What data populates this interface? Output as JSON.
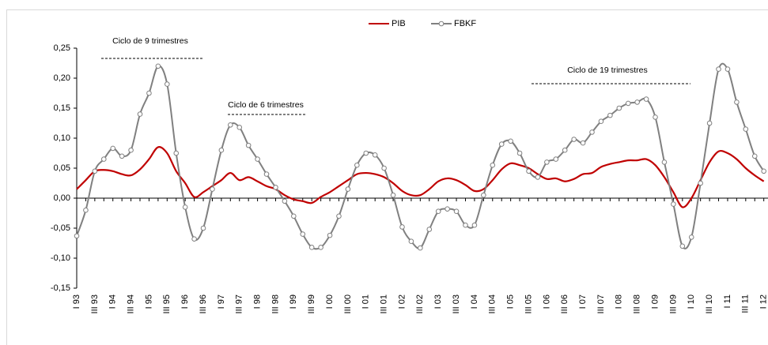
{
  "chart_data": {
    "type": "line",
    "categories": [
      "I 93",
      null,
      "III 93",
      null,
      "I 94",
      null,
      "III 94",
      null,
      "I 95",
      null,
      "III 95",
      null,
      "I 96",
      null,
      "III 96",
      null,
      "I 97",
      null,
      "III 97",
      null,
      "I 98",
      null,
      "III 98",
      null,
      "I 99",
      null,
      "III 99",
      null,
      "I 00",
      null,
      "III 00",
      null,
      "I 01",
      null,
      "III 01",
      null,
      "I 02",
      null,
      "III 02",
      null,
      "I 03",
      null,
      "III 03",
      null,
      "I 04",
      null,
      "III 04",
      null,
      "I 05",
      null,
      "III 05",
      null,
      "I 06",
      null,
      "III 06",
      null,
      "I 07",
      null,
      "III 07",
      null,
      "I 08",
      null,
      "III 08",
      null,
      "I 09",
      null,
      "III 09",
      null,
      "I 10",
      null,
      "III 10",
      null,
      "I 11",
      null,
      "III 11",
      null,
      "I 12"
    ],
    "series": [
      {
        "name": "PIB",
        "color": "#c00000",
        "values": [
          0.015,
          0.03,
          0.045,
          0.047,
          0.045,
          0.04,
          0.038,
          0.048,
          0.065,
          0.085,
          0.075,
          0.045,
          0.025,
          0.002,
          0.01,
          0.02,
          0.03,
          0.042,
          0.03,
          0.035,
          0.028,
          0.02,
          0.015,
          0.005,
          -0.002,
          -0.005,
          -0.008,
          0.002,
          0.01,
          0.02,
          0.03,
          0.04,
          0.042,
          0.04,
          0.035,
          0.025,
          0.012,
          0.005,
          0.005,
          0.015,
          0.028,
          0.033,
          0.03,
          0.022,
          0.012,
          0.015,
          0.03,
          0.048,
          0.058,
          0.055,
          0.05,
          0.04,
          0.032,
          0.033,
          0.028,
          0.032,
          0.04,
          0.042,
          0.052,
          0.057,
          0.06,
          0.063,
          0.063,
          0.065,
          0.055,
          0.035,
          0.01,
          -0.015,
          0.0,
          0.03,
          0.06,
          0.078,
          0.075,
          0.065,
          0.05,
          0.038,
          0.028
        ]
      },
      {
        "name": "FBKF",
        "color": "#808080",
        "values": [
          -0.063,
          -0.02,
          0.045,
          0.065,
          0.083,
          0.07,
          0.08,
          0.14,
          0.175,
          0.22,
          0.19,
          0.075,
          -0.015,
          -0.068,
          -0.05,
          0.015,
          0.08,
          0.122,
          0.118,
          0.088,
          0.065,
          0.04,
          0.018,
          -0.005,
          -0.03,
          -0.06,
          -0.082,
          -0.082,
          -0.062,
          -0.03,
          0.015,
          0.055,
          0.075,
          0.072,
          0.05,
          0.005,
          -0.048,
          -0.072,
          -0.083,
          -0.052,
          -0.022,
          -0.018,
          -0.022,
          -0.045,
          -0.045,
          0.005,
          0.055,
          0.09,
          0.095,
          0.075,
          0.045,
          0.035,
          0.06,
          0.065,
          0.08,
          0.098,
          0.092,
          0.11,
          0.128,
          0.138,
          0.15,
          0.158,
          0.16,
          0.165,
          0.135,
          0.06,
          -0.01,
          -0.08,
          -0.065,
          0.025,
          0.125,
          0.215,
          0.215,
          0.16,
          0.115,
          0.07,
          0.045
        ]
      }
    ],
    "ylim": [
      -0.15,
      0.25
    ],
    "yticks": [
      {
        "value": -0.15,
        "label": "-0,15"
      },
      {
        "value": -0.1,
        "label": "-0,10"
      },
      {
        "value": -0.05,
        "label": "-0,05"
      },
      {
        "value": 0,
        "label": "0,00"
      },
      {
        "value": 0.05,
        "label": "0,05"
      },
      {
        "value": 0.1,
        "label": "0,10"
      },
      {
        "value": 0.15,
        "label": "0,15"
      },
      {
        "value": 0.2,
        "label": "0,20"
      },
      {
        "value": 0.25,
        "label": "0,25"
      }
    ],
    "annotations": [
      "Ciclo de 9 trimestres",
      "Ciclo de 6 trimestres",
      "Ciclo de 19 trimestres"
    ],
    "legend": "top"
  }
}
